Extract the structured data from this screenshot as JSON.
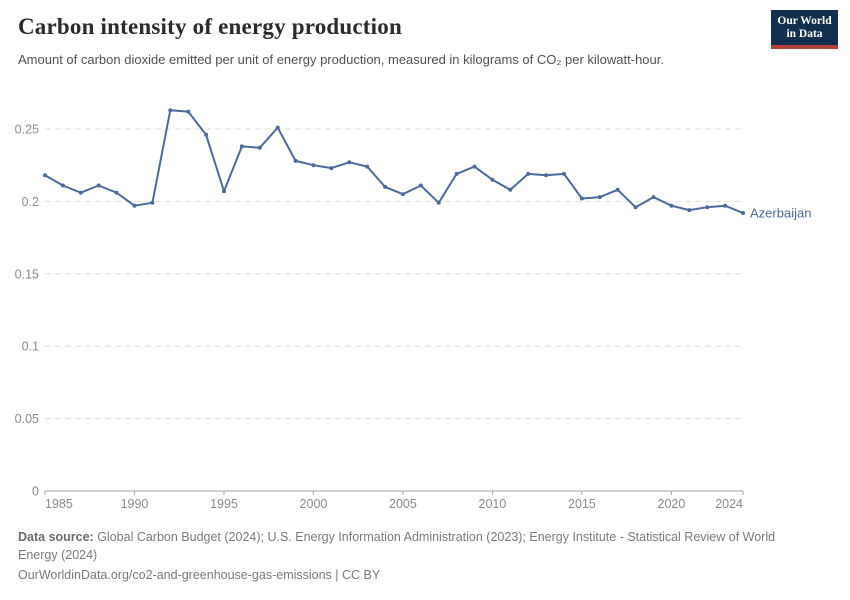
{
  "header": {
    "title": "Carbon intensity of energy production",
    "subtitle": "Amount of carbon dioxide emitted per unit of energy production, measured in kilograms of CO₂ per kilowatt-hour.",
    "logo": {
      "line1": "Our World",
      "line2": "in Data"
    }
  },
  "chart_data": {
    "type": "line",
    "title": "Carbon intensity of energy production",
    "xlabel": "",
    "ylabel": "",
    "xlim": [
      1985,
      2024
    ],
    "ylim": [
      0,
      0.27
    ],
    "grid": "horizontal dashed",
    "legend_position": "end-of-line label",
    "x": [
      1985,
      1986,
      1987,
      1988,
      1989,
      1990,
      1991,
      1992,
      1993,
      1994,
      1995,
      1996,
      1997,
      1998,
      1999,
      2000,
      2001,
      2002,
      2003,
      2004,
      2005,
      2006,
      2007,
      2008,
      2009,
      2010,
      2011,
      2012,
      2013,
      2014,
      2015,
      2016,
      2017,
      2018,
      2019,
      2020,
      2021,
      2022,
      2023,
      2024
    ],
    "series": [
      {
        "name": "Azerbaijan",
        "color": "#4C6A9C",
        "values": [
          0.218,
          0.211,
          0.206,
          0.211,
          0.206,
          0.197,
          0.199,
          0.263,
          0.262,
          0.246,
          0.207,
          0.238,
          0.237,
          0.251,
          0.228,
          0.225,
          0.223,
          0.227,
          0.224,
          0.21,
          0.205,
          0.211,
          0.199,
          0.219,
          0.224,
          0.215,
          0.208,
          0.219,
          0.218,
          0.219,
          0.202,
          0.203,
          0.208,
          0.196,
          0.203,
          0.197,
          0.194,
          0.196,
          0.197,
          0.192
        ]
      }
    ],
    "x_ticks": [
      1985,
      1990,
      1995,
      2000,
      2005,
      2010,
      2015,
      2020,
      2024
    ],
    "x_tick_labels": [
      "1985",
      "1990",
      "1995",
      "2000",
      "2005",
      "2010",
      "2015",
      "2020",
      "2024"
    ],
    "y_ticks": [
      0,
      0.05,
      0.1,
      0.15,
      0.2,
      0.25
    ],
    "y_tick_labels": [
      "0",
      "0.05",
      "0.1",
      "0.15",
      "0.2",
      "0.25"
    ]
  },
  "colors": {
    "line": "#4C6A9C",
    "entity_label": "#4C6A9C",
    "grid": "#dddddd",
    "axis": "#a5a5a5",
    "tick_text": "#8b8b8b",
    "logo_bg": "#12304e",
    "logo_accent": "#b5403a"
  },
  "footer": {
    "datasource_label": "Data source:",
    "datasource_text": " Global Carbon Budget (2024); U.S. Energy Information Administration (2023); Energy Institute - Statistical Review of World Energy (2024)",
    "credit": "OurWorldinData.org/co2-and-greenhouse-gas-emissions | CC BY"
  }
}
